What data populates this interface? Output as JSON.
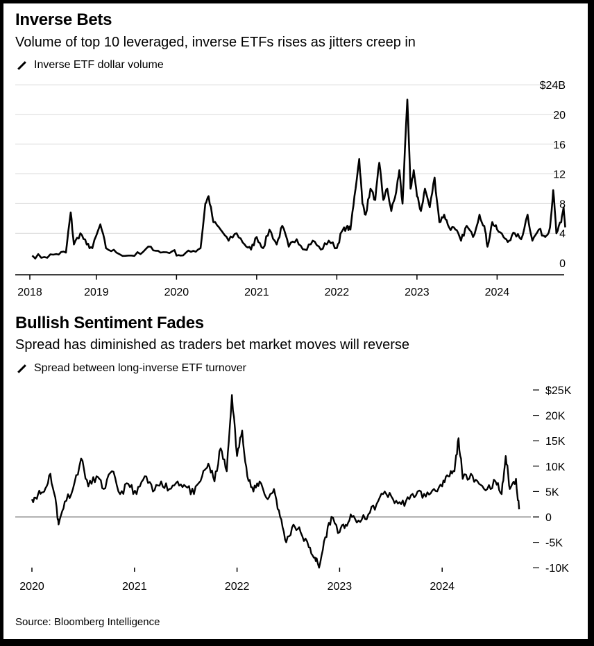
{
  "source": "Source: Bloomberg Intelligence",
  "chart_data": [
    {
      "type": "line",
      "title": "Inverse Bets",
      "subtitle": "Volume of top 10 leveraged, inverse ETFs rises as jitters creep in",
      "series": [
        {
          "name": "Inverse ETF dollar volume",
          "color": "#000000",
          "points": [
            [
              2018.2,
              1.0
            ],
            [
              2018.35,
              0.8
            ],
            [
              2018.5,
              1.2
            ],
            [
              2018.62,
              1.4
            ],
            [
              2018.68,
              6.8
            ],
            [
              2018.72,
              2.5
            ],
            [
              2018.8,
              4.0
            ],
            [
              2018.88,
              2.5
            ],
            [
              2018.95,
              2.0
            ],
            [
              2019.05,
              5.2
            ],
            [
              2019.12,
              2.0
            ],
            [
              2019.25,
              1.4
            ],
            [
              2019.4,
              1.0
            ],
            [
              2019.55,
              1.2
            ],
            [
              2019.68,
              2.2
            ],
            [
              2019.8,
              1.4
            ],
            [
              2019.95,
              1.6
            ],
            [
              2020.05,
              1.0
            ],
            [
              2020.18,
              1.5
            ],
            [
              2020.3,
              2.0
            ],
            [
              2020.36,
              8.0
            ],
            [
              2020.4,
              9.0
            ],
            [
              2020.46,
              5.5
            ],
            [
              2020.55,
              4.5
            ],
            [
              2020.65,
              3.0
            ],
            [
              2020.75,
              4.0
            ],
            [
              2020.85,
              2.5
            ],
            [
              2020.93,
              1.8
            ],
            [
              2021.0,
              3.5
            ],
            [
              2021.08,
              2.0
            ],
            [
              2021.16,
              4.5
            ],
            [
              2021.25,
              2.5
            ],
            [
              2021.32,
              5.0
            ],
            [
              2021.4,
              2.2
            ],
            [
              2021.5,
              3.2
            ],
            [
              2021.6,
              1.8
            ],
            [
              2021.7,
              3.0
            ],
            [
              2021.8,
              1.8
            ],
            [
              2021.9,
              3.0
            ],
            [
              2022.0,
              2.0
            ],
            [
              2022.06,
              4.2
            ],
            [
              2022.12,
              4.8
            ],
            [
              2022.17,
              4.5
            ],
            [
              2022.22,
              9.0
            ],
            [
              2022.28,
              14.0
            ],
            [
              2022.32,
              8.0
            ],
            [
              2022.36,
              6.5
            ],
            [
              2022.42,
              10.0
            ],
            [
              2022.48,
              8.5
            ],
            [
              2022.53,
              13.5
            ],
            [
              2022.58,
              8.5
            ],
            [
              2022.63,
              10.0
            ],
            [
              2022.68,
              7.0
            ],
            [
              2022.74,
              9.5
            ],
            [
              2022.78,
              12.5
            ],
            [
              2022.82,
              8.0
            ],
            [
              2022.88,
              22.0
            ],
            [
              2022.92,
              10.0
            ],
            [
              2022.96,
              12.5
            ],
            [
              2023.0,
              9.0
            ],
            [
              2023.05,
              7.0
            ],
            [
              2023.1,
              10.0
            ],
            [
              2023.16,
              7.5
            ],
            [
              2023.22,
              11.5
            ],
            [
              2023.28,
              5.5
            ],
            [
              2023.34,
              6.5
            ],
            [
              2023.4,
              4.8
            ],
            [
              2023.48,
              4.5
            ],
            [
              2023.55,
              3.0
            ],
            [
              2023.62,
              5.0
            ],
            [
              2023.7,
              3.5
            ],
            [
              2023.78,
              6.5
            ],
            [
              2023.84,
              5.0
            ],
            [
              2023.88,
              2.2
            ],
            [
              2023.94,
              5.5
            ],
            [
              2024.0,
              4.5
            ],
            [
              2024.08,
              3.5
            ],
            [
              2024.15,
              3.0
            ],
            [
              2024.22,
              4.0
            ],
            [
              2024.3,
              3.2
            ],
            [
              2024.38,
              6.5
            ],
            [
              2024.44,
              3.0
            ],
            [
              2024.52,
              4.5
            ],
            [
              2024.6,
              3.5
            ],
            [
              2024.66,
              4.8
            ],
            [
              2024.7,
              9.8
            ],
            [
              2024.74,
              4.0
            ],
            [
              2024.8,
              5.5
            ],
            [
              2024.83,
              7.5
            ],
            [
              2024.85,
              4.8
            ]
          ]
        }
      ],
      "x_ticks": [
        "2018",
        "2019",
        "2020",
        "2021",
        "2022",
        "2023",
        "2024"
      ],
      "y_ticks": [
        "0",
        "4",
        "8",
        "12",
        "16",
        "20",
        "$24B"
      ],
      "y_tick_values": [
        0,
        4,
        8,
        12,
        16,
        20,
        24
      ],
      "ylim": [
        0,
        24
      ],
      "grid": true,
      "legend_position": "top-left"
    },
    {
      "type": "line",
      "title": "Bullish Sentiment Fades",
      "subtitle": "Spread has diminished as traders bet market moves will reverse",
      "series": [
        {
          "name": "Spread between long-inverse ETF turnover",
          "color": "#000000",
          "points": [
            [
              2020.0,
              3500
            ],
            [
              2020.06,
              4500
            ],
            [
              2020.12,
              5000
            ],
            [
              2020.18,
              8500
            ],
            [
              2020.24,
              2000
            ],
            [
              2020.26,
              -1500
            ],
            [
              2020.32,
              3000
            ],
            [
              2020.4,
              5500
            ],
            [
              2020.48,
              11500
            ],
            [
              2020.55,
              6000
            ],
            [
              2020.63,
              8000
            ],
            [
              2020.7,
              5500
            ],
            [
              2020.78,
              9000
            ],
            [
              2020.86,
              4500
            ],
            [
              2020.94,
              6500
            ],
            [
              2021.02,
              4500
            ],
            [
              2021.1,
              8000
            ],
            [
              2021.18,
              5000
            ],
            [
              2021.26,
              7000
            ],
            [
              2021.34,
              5500
            ],
            [
              2021.42,
              7000
            ],
            [
              2021.5,
              6000
            ],
            [
              2021.58,
              4500
            ],
            [
              2021.66,
              8000
            ],
            [
              2021.72,
              10500
            ],
            [
              2021.78,
              7000
            ],
            [
              2021.84,
              13500
            ],
            [
              2021.9,
              9000
            ],
            [
              2021.95,
              24000
            ],
            [
              2022.0,
              12000
            ],
            [
              2022.05,
              17000
            ],
            [
              2022.1,
              8000
            ],
            [
              2022.16,
              5000
            ],
            [
              2022.22,
              7000
            ],
            [
              2022.3,
              3500
            ],
            [
              2022.36,
              5500
            ],
            [
              2022.42,
              0
            ],
            [
              2022.48,
              -5000
            ],
            [
              2022.55,
              -1500
            ],
            [
              2022.62,
              -3000
            ],
            [
              2022.7,
              -6000
            ],
            [
              2022.76,
              -8000
            ],
            [
              2022.8,
              -10000
            ],
            [
              2022.86,
              -4000
            ],
            [
              2022.92,
              0
            ],
            [
              2023.0,
              -3000
            ],
            [
              2023.06,
              -1500
            ],
            [
              2023.12,
              0
            ],
            [
              2023.2,
              -1000
            ],
            [
              2023.28,
              500
            ],
            [
              2023.36,
              2500
            ],
            [
              2023.44,
              5000
            ],
            [
              2023.52,
              3500
            ],
            [
              2023.6,
              2500
            ],
            [
              2023.68,
              3500
            ],
            [
              2023.76,
              5000
            ],
            [
              2023.84,
              4000
            ],
            [
              2023.92,
              5500
            ],
            [
              2024.0,
              6000
            ],
            [
              2024.06,
              8000
            ],
            [
              2024.12,
              9000
            ],
            [
              2024.16,
              15500
            ],
            [
              2024.2,
              7500
            ],
            [
              2024.28,
              8500
            ],
            [
              2024.36,
              6500
            ],
            [
              2024.44,
              5500
            ],
            [
              2024.52,
              7000
            ],
            [
              2024.58,
              4500
            ],
            [
              2024.62,
              12000
            ],
            [
              2024.66,
              5500
            ],
            [
              2024.72,
              7500
            ],
            [
              2024.75,
              1500
            ]
          ]
        }
      ],
      "x_ticks": [
        "2020",
        "2021",
        "2022",
        "2023",
        "2024"
      ],
      "y_ticks": [
        "-10K",
        "-5K",
        "0",
        "5K",
        "10K",
        "15K",
        "20K",
        "$25K"
      ],
      "y_tick_values": [
        -10000,
        -5000,
        0,
        5000,
        10000,
        15000,
        20000,
        25000
      ],
      "ylim": [
        -10000,
        25000
      ],
      "grid": false,
      "zero_line": true,
      "legend_position": "top-left"
    }
  ]
}
